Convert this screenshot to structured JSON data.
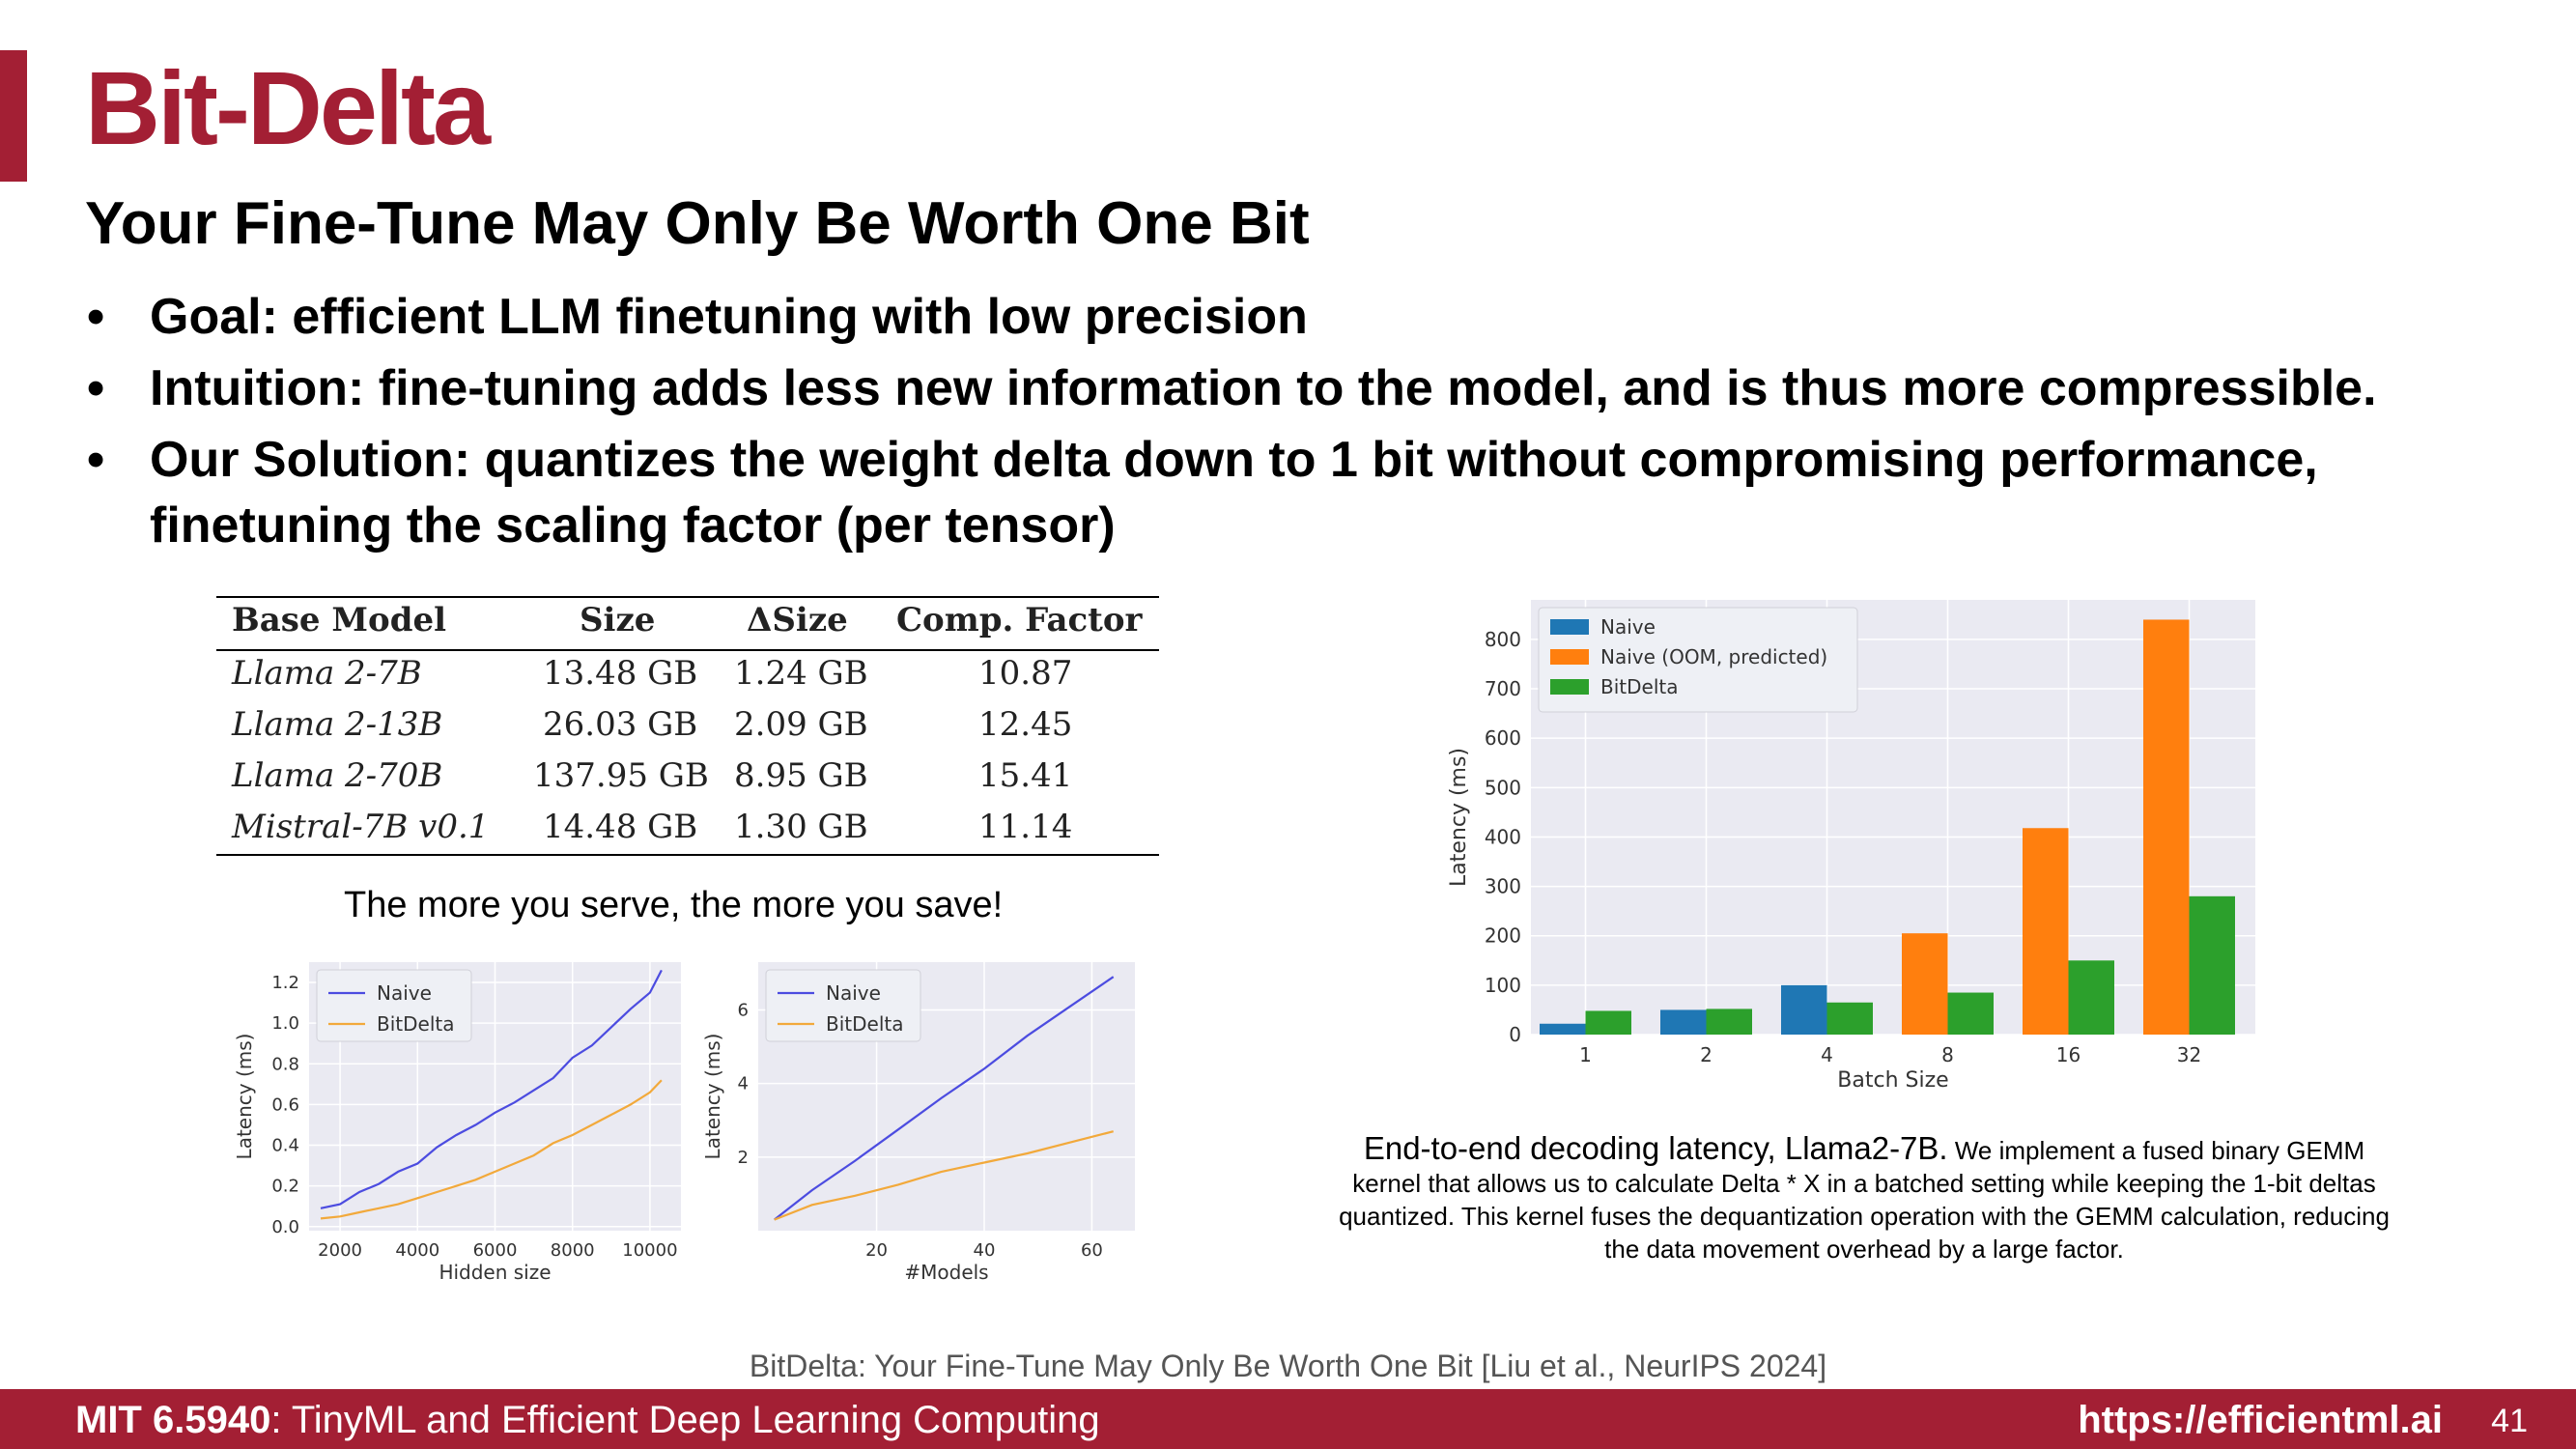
{
  "slide": {
    "title": "Bit-Delta",
    "subtitle": "Your Fine-Tune May Only Be Worth One Bit",
    "bullets": [
      "Goal: efficient LLM finetuning with low precision",
      "Intuition:  fine-tuning adds less new information to the model, and is thus more compressible.",
      "Our Solution: quantizes the weight delta down to 1 bit without compromising performance, finetuning the scaling factor (per tensor)"
    ],
    "bullet_marker": "•"
  },
  "table": {
    "headers": [
      "Base Model",
      "Size",
      "ΔSize",
      "Comp. Factor"
    ],
    "rows": [
      [
        "Llama 2-7B",
        "13.48 GB",
        "1.24 GB",
        "10.87"
      ],
      [
        "Llama 2-13B",
        "26.03 GB",
        "2.09 GB",
        "12.45"
      ],
      [
        "Llama 2-70B",
        "137.95 GB",
        "8.95 GB",
        "15.41"
      ],
      [
        "Mistral-7B v0.1",
        "14.48 GB",
        "1.30 GB",
        "11.14"
      ]
    ]
  },
  "serve_caption": "The more you serve, the more you save!",
  "right_caption": {
    "head": "End-to-end decoding latency, Llama2-7B.",
    "body": " We implement a fused binary GEMM kernel that allows us to calculate Delta * X in a batched setting while keeping the 1-bit deltas quantized. This kernel fuses the dequantization operation with the GEMM calculation, reducing the data movement overhead by a large factor."
  },
  "citation": "BitDelta: Your Fine-Tune May Only Be Worth One Bit [Liu et al., NeurIPS 2024]",
  "footer": {
    "course_code": "MIT 6.5940",
    "course_name": ": TinyML and Efficient Deep Learning Computing",
    "url": "https://efficientml.ai",
    "page": "41"
  },
  "chart_data": [
    {
      "type": "line",
      "xlabel": "Hidden size",
      "ylabel": "Latency (ms)",
      "xlim": [
        1200,
        10800
      ],
      "ylim": [
        -0.02,
        1.3
      ],
      "xticks": [
        2000,
        4000,
        6000,
        8000,
        10000
      ],
      "yticks": [
        0.0,
        0.2,
        0.4,
        0.6,
        0.8,
        1.0,
        1.2
      ],
      "ytick_labels": [
        "0.0",
        "0.2",
        "0.4",
        "0.6",
        "0.8",
        "1.0",
        "1.2"
      ],
      "legend": "top-left",
      "grid": true,
      "series": [
        {
          "name": "Naive",
          "color": "#4c4ce0",
          "x": [
            1500,
            2000,
            2500,
            3000,
            3500,
            4000,
            4500,
            5000,
            5500,
            6000,
            6500,
            7000,
            7500,
            8000,
            8500,
            9000,
            9500,
            10000,
            10300
          ],
          "y": [
            0.09,
            0.11,
            0.17,
            0.21,
            0.27,
            0.31,
            0.39,
            0.45,
            0.5,
            0.56,
            0.61,
            0.67,
            0.73,
            0.83,
            0.89,
            0.98,
            1.07,
            1.15,
            1.26
          ]
        },
        {
          "name": "BitDelta",
          "color": "#f2a93b",
          "x": [
            1500,
            2000,
            2500,
            3000,
            3500,
            4000,
            4500,
            5000,
            5500,
            6000,
            6500,
            7000,
            7500,
            8000,
            8500,
            9000,
            9500,
            10000,
            10300
          ],
          "y": [
            0.04,
            0.05,
            0.07,
            0.09,
            0.11,
            0.14,
            0.17,
            0.2,
            0.23,
            0.27,
            0.31,
            0.35,
            0.41,
            0.45,
            0.5,
            0.55,
            0.6,
            0.66,
            0.72
          ]
        }
      ]
    },
    {
      "type": "line",
      "xlabel": "#Models",
      "ylabel": "Latency (ms)",
      "xlim": [
        -2,
        68
      ],
      "ylim": [
        0,
        7.3
      ],
      "xticks": [
        20,
        40,
        60
      ],
      "yticks": [
        2,
        4,
        6
      ],
      "ytick_labels": [
        "2",
        "4",
        "6"
      ],
      "legend": "top-left",
      "grid": true,
      "series": [
        {
          "name": "Naive",
          "color": "#4c4ce0",
          "x": [
            1,
            8,
            16,
            24,
            32,
            40,
            48,
            56,
            64
          ],
          "y": [
            0.3,
            1.1,
            1.9,
            2.75,
            3.6,
            4.4,
            5.3,
            6.1,
            6.9
          ]
        },
        {
          "name": "BitDelta",
          "color": "#f2a93b",
          "x": [
            1,
            8,
            16,
            24,
            32,
            40,
            48,
            56,
            64
          ],
          "y": [
            0.3,
            0.7,
            0.95,
            1.25,
            1.6,
            1.85,
            2.1,
            2.4,
            2.7
          ]
        }
      ]
    },
    {
      "type": "bar",
      "xlabel": "Batch Size",
      "ylabel": "Latency (ms)",
      "categories": [
        "1",
        "2",
        "4",
        "8",
        "16",
        "32"
      ],
      "ylim": [
        0,
        850
      ],
      "yticks": [
        0,
        100,
        200,
        300,
        400,
        500,
        600,
        700,
        800
      ],
      "legend": "top-left",
      "grid": true,
      "series": [
        {
          "name": "Naive",
          "color": "#1f77b4",
          "values": [
            22,
            50,
            100,
            null,
            null,
            null
          ]
        },
        {
          "name": "Naive (OOM, predicted)",
          "color": "#ff7f0e",
          "values": [
            null,
            null,
            null,
            205,
            418,
            840
          ]
        },
        {
          "name": "BitDelta",
          "color": "#2ca02c",
          "values": [
            48,
            52,
            65,
            85,
            150,
            280
          ]
        }
      ]
    }
  ]
}
